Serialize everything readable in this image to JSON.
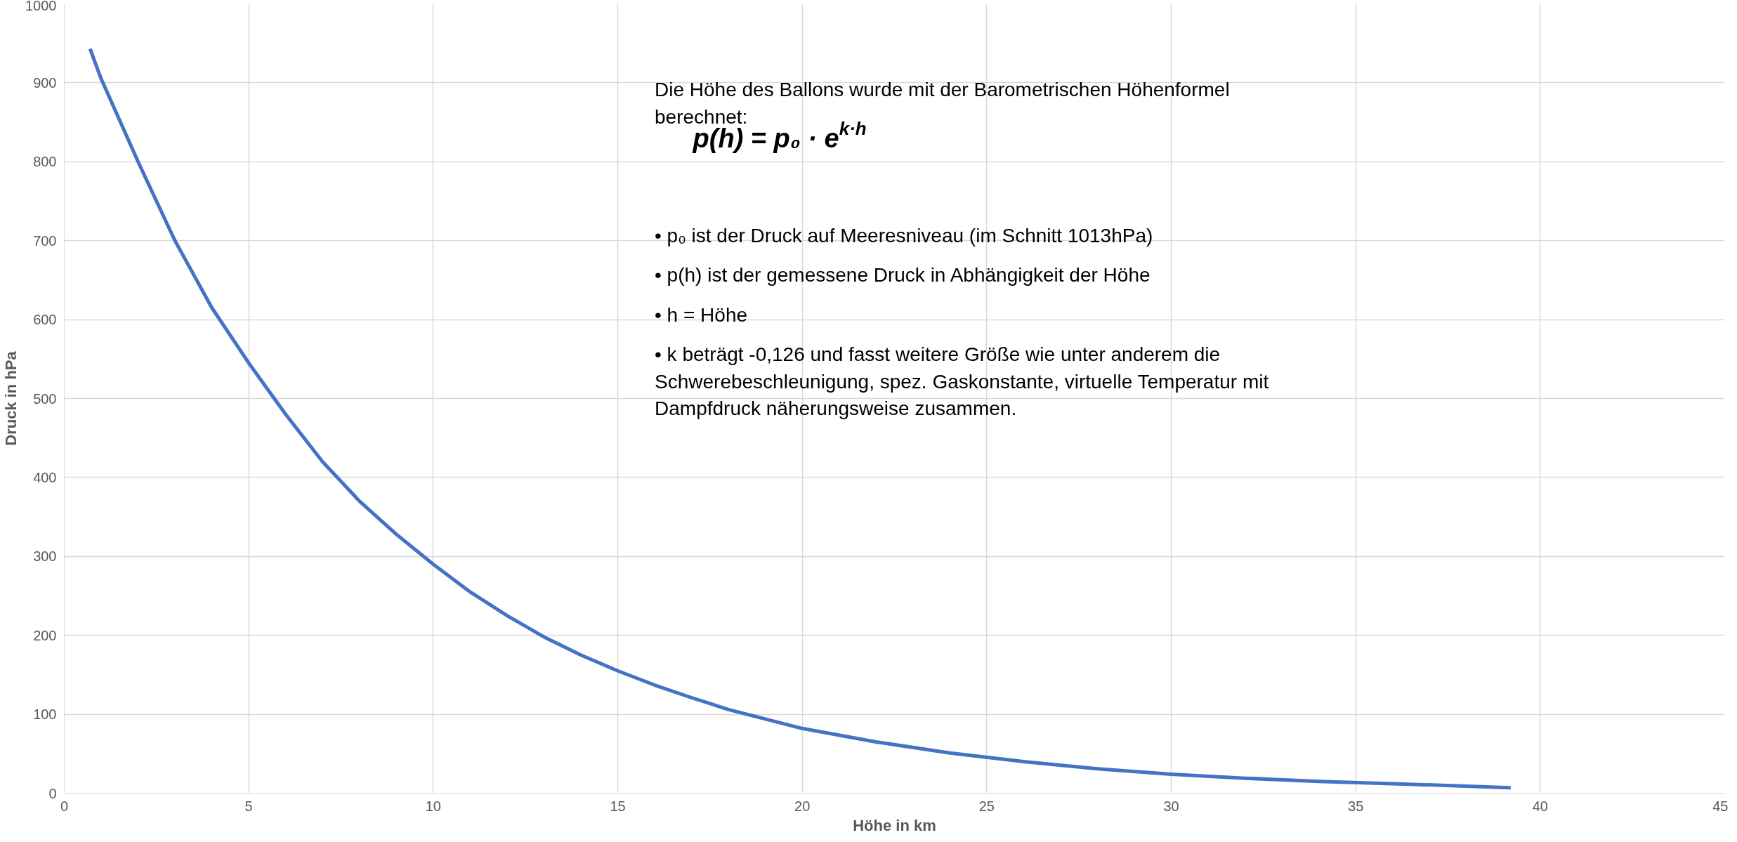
{
  "chart_data": {
    "type": "line",
    "xlabel": "Höhe in km",
    "ylabel": "Druck in hPa",
    "x": [
      0.7,
      1,
      2,
      3,
      4,
      5,
      6,
      7,
      8,
      9,
      10,
      11,
      12,
      13,
      14,
      15,
      16,
      17,
      18,
      19,
      20,
      22,
      24,
      26,
      28,
      30,
      32,
      34,
      36,
      38,
      39.2
    ],
    "series": [
      {
        "color": "#4472c4",
        "values": [
          943,
          905,
          800,
          700,
          615,
          545,
          480,
          420,
          370,
          328,
          290,
          255,
          225,
          198,
          175,
          155,
          137,
          121,
          106,
          94,
          82,
          65,
          51,
          40,
          31,
          24,
          19,
          15,
          12,
          9,
          7
        ]
      }
    ],
    "xlim": [
      0,
      45
    ],
    "xticks": [
      0,
      5,
      10,
      15,
      20,
      25,
      30,
      35,
      40,
      45
    ],
    "ylim": [
      0,
      1000
    ],
    "yticks": [
      0,
      100,
      200,
      300,
      400,
      500,
      600,
      700,
      800,
      900,
      1000
    ],
    "grid": true,
    "marker": "none",
    "line_style": "solid",
    "annotations": [
      "Die Höhe des Ballons wurde mit der Barometrischen Höhenformel\nberechnet:",
      "p(h) = p₀ · e$^{k·h}$",
      "•   p₀ ist der Druck auf Meeresniveau (im Schnitt 1013hPa)",
      "•   p(h) ist der gemessene Druck in Abhängigkeit der Höhe",
      "•   h = Höhe",
      "•   k beträgt -0,126 und fasst weitere Größe wie unter anderem die\n     Schwerebeschleunigung, spez. Gaskonstante, virtuelle Temperatur mit\n     Dampfdruck näherungsweise zusammen."
    ]
  }
}
